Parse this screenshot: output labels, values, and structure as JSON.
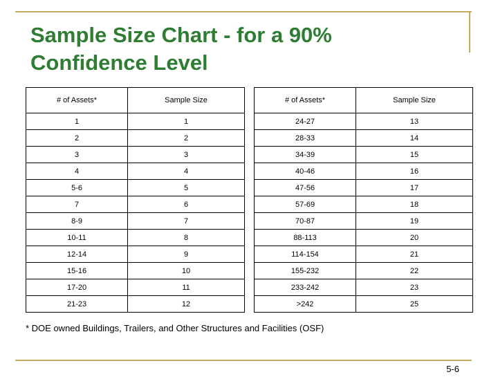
{
  "title": "Sample Size Chart - for a 90%\nConfidence Level",
  "headers": {
    "assets": "# of Assets*",
    "sample_size": "Sample Size"
  },
  "left_rows": [
    {
      "assets": "1",
      "sample": "1"
    },
    {
      "assets": "2",
      "sample": "2"
    },
    {
      "assets": "3",
      "sample": "3"
    },
    {
      "assets": "4",
      "sample": "4"
    },
    {
      "assets": "5-6",
      "sample": "5"
    },
    {
      "assets": "7",
      "sample": "6"
    },
    {
      "assets": "8-9",
      "sample": "7"
    },
    {
      "assets": "10-11",
      "sample": "8"
    },
    {
      "assets": "12-14",
      "sample": "9"
    },
    {
      "assets": "15-16",
      "sample": "10"
    },
    {
      "assets": "17-20",
      "sample": "11"
    },
    {
      "assets": "21-23",
      "sample": "12"
    }
  ],
  "right_rows": [
    {
      "assets": "24-27",
      "sample": "13"
    },
    {
      "assets": "28-33",
      "sample": "14"
    },
    {
      "assets": "34-39",
      "sample": "15"
    },
    {
      "assets": "40-46",
      "sample": "16"
    },
    {
      "assets": "47-56",
      "sample": "17"
    },
    {
      "assets": "57-69",
      "sample": "18"
    },
    {
      "assets": "70-87",
      "sample": "19"
    },
    {
      "assets": "88-113",
      "sample": "20"
    },
    {
      "assets": "114-154",
      "sample": "21"
    },
    {
      "assets": "155-232",
      "sample": "22"
    },
    {
      "assets": "233-242",
      "sample": "23"
    },
    {
      "assets": ">242",
      "sample": "25"
    }
  ],
  "footnote": "* DOE owned Buildings, Trailers, and Other Structures and Facilities (OSF)",
  "page_number": "5-6",
  "colors": {
    "title": "#2e7d32",
    "accent_rule": "#c2ad5d"
  }
}
